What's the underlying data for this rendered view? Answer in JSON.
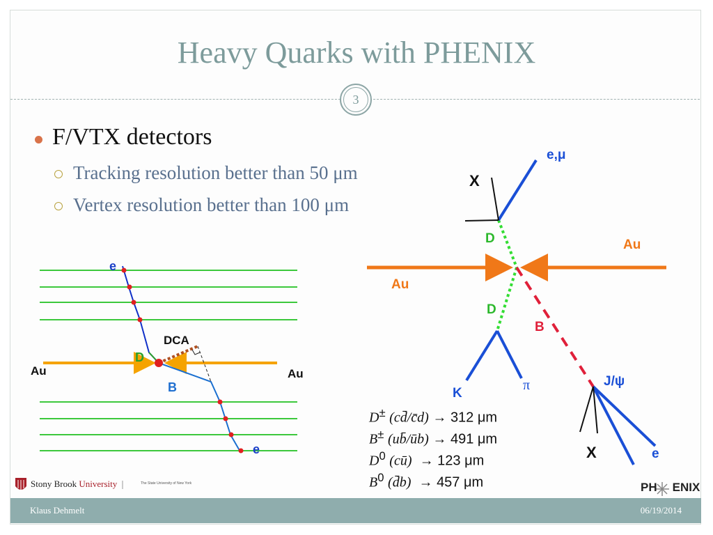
{
  "slide": {
    "title": "Heavy Quarks with PHENIX",
    "page_number": "3",
    "bullet_main": "F/VTX detectors",
    "sub_bullets": [
      "Tracking resolution better than 50 μm",
      "Vertex resolution better than 100 μm"
    ]
  },
  "left_diagram": {
    "labels": {
      "e_top": "e",
      "e_bottom": "e",
      "dca": "DCA",
      "d": "D",
      "b": "B",
      "au_left": "Au",
      "au_right": "Au"
    },
    "colors": {
      "layers": "#3cc83c",
      "beam": "#f5a300",
      "track": "#1030c8",
      "hit": "#e02020",
      "d_label": "#2ca02c",
      "b_label": "#1f6fd0",
      "dca_line": "#b05020"
    }
  },
  "right_diagram": {
    "labels": {
      "e_mu": "e,μ",
      "x_top": "X",
      "d_top": "D",
      "au_right": "Au",
      "au_left": "Au",
      "d_mid": "D",
      "b": "B",
      "k": "K",
      "pi": "π",
      "jpsi": "J/ψ",
      "x_bottom": "X",
      "e": "e"
    },
    "colors": {
      "beam": "#f07818",
      "track": "#1a4fd6",
      "d_track": "#33dd33",
      "b_track": "#e0203a",
      "label_blue": "#1a4fd6",
      "label_orange": "#f07818",
      "label_green": "#2cb82c",
      "label_red": "#e0203a"
    }
  },
  "formulas": [
    {
      "particle": "D",
      "sup": "±",
      "content": "(cd̄/c̄d)",
      "arrow": "→",
      "value": "312 μm"
    },
    {
      "particle": "B",
      "sup": "±",
      "content": "(ub̄/ūb)",
      "arrow": "→",
      "value": "491 μm"
    },
    {
      "particle": "D",
      "sup": "0",
      "content": "(cū)",
      "arrow": "→",
      "value": "123 μm"
    },
    {
      "particle": "B",
      "sup": "0",
      "content": "(d̄b)",
      "arrow": "→",
      "value": "457 μm"
    }
  ],
  "logos": {
    "university_a": "Stony Brook",
    "university_b": "University",
    "university_tagline": "The State University of New York",
    "phenix_a": "PH",
    "phenix_b": "ENIX"
  },
  "footer": {
    "author": "Klaus Dehmelt",
    "date": "06/19/2014"
  }
}
